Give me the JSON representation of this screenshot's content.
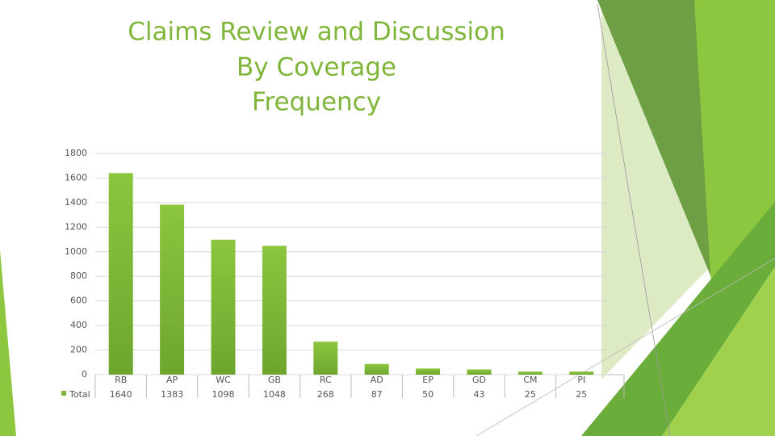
{
  "chart_data": {
    "type": "bar",
    "title": [
      "Claims Review and Discussion",
      "By Coverage",
      "Frequency"
    ],
    "categories": [
      "RB",
      "AP",
      "WC",
      "GB",
      "RC",
      "AD",
      "EP",
      "GD",
      "CM",
      "PI"
    ],
    "series": [
      {
        "name": "Total",
        "color": "#7fb539",
        "values": [
          1640,
          1383,
          1098,
          1048,
          268,
          87,
          50,
          43,
          25,
          25
        ]
      }
    ],
    "ylim": [
      0,
      1800
    ],
    "yticks": [
      0,
      200,
      400,
      600,
      800,
      1000,
      1200,
      1400,
      1600,
      1800
    ],
    "grid": true
  }
}
